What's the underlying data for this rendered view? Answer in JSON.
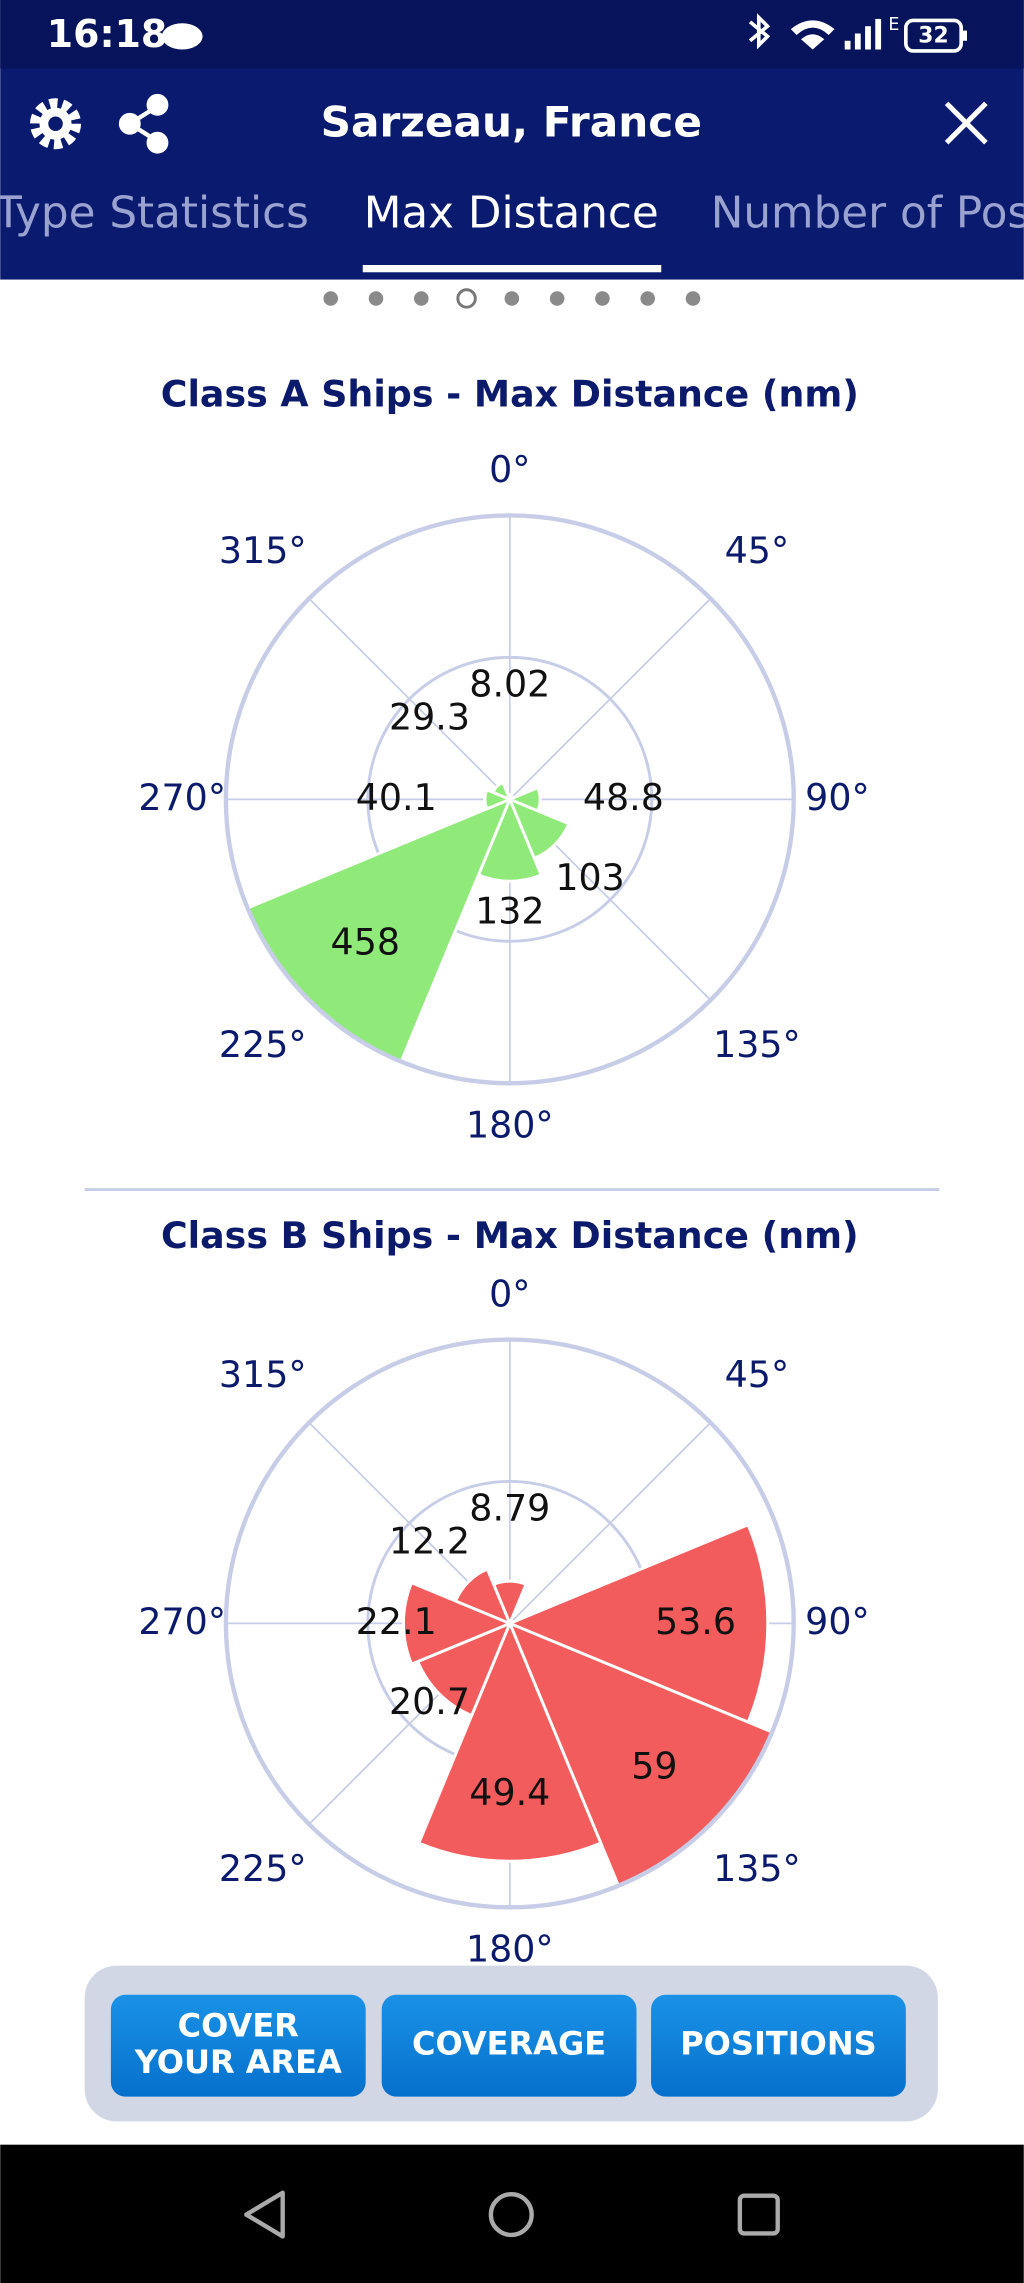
{
  "status_bar": {
    "time": "16:18",
    "battery": "32"
  },
  "header": {
    "title": "Sarzeau, France"
  },
  "tabs": [
    "Type Statistics",
    "Max Distance",
    "Number of Positions"
  ],
  "chart_data": [
    {
      "type": "polar_bar",
      "title": "Class A Ships - Max Distance (nm)",
      "categories": [
        "0°",
        "45°",
        "90°",
        "135°",
        "180°",
        "225°",
        "270°",
        "315°"
      ],
      "values": [
        8.02,
        null,
        48.8,
        103,
        132,
        458,
        40.1,
        29.3
      ],
      "color": "#90ea7a",
      "rlim": [
        0,
        458
      ]
    },
    {
      "type": "polar_bar",
      "title": "Class B Ships - Max Distance (nm)",
      "categories": [
        "0°",
        "45°",
        "90°",
        "135°",
        "180°",
        "225°",
        "270°",
        "315°"
      ],
      "values": [
        8.79,
        null,
        53.6,
        59,
        49.4,
        20.7,
        22.1,
        12.2
      ],
      "color": "#f25c5c",
      "rlim": [
        0,
        59
      ]
    }
  ],
  "buttons": [
    [
      "COVER",
      "YOUR AREA"
    ],
    [
      "COVERAGE"
    ],
    [
      "POSITIONS"
    ]
  ]
}
